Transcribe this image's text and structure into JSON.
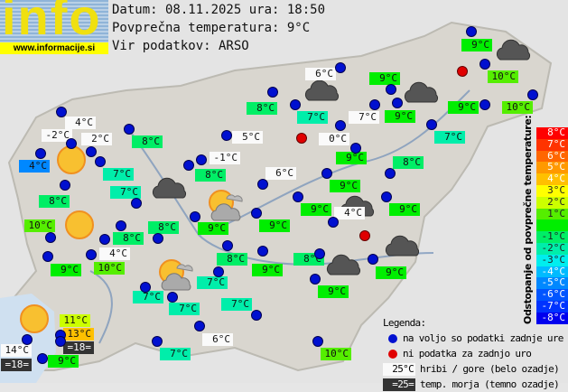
{
  "header": {
    "logo_text": "info",
    "logo_url": "www.informacije.si",
    "date_line": "Datum: 08.11.2025 ura: 18:50",
    "avg_line": "Povprečna temperatura: 9°C",
    "source_line": "Vir podatkov: ARSO"
  },
  "average_temperature": 9,
  "stations": [
    {
      "temp": "4°C",
      "kind": "mountain"
    },
    {
      "temp": "-2°C",
      "kind": "mountain"
    },
    {
      "temp": "2°C",
      "kind": "mountain"
    },
    {
      "temp": "4°C",
      "kind": "valley"
    },
    {
      "temp": "7°C",
      "kind": "valley"
    },
    {
      "temp": "7°C",
      "kind": "valley"
    },
    {
      "temp": "8°C",
      "kind": "valley"
    },
    {
      "temp": "10°C",
      "kind": "valley"
    },
    {
      "temp": "8°C",
      "kind": "valley"
    },
    {
      "temp": "8°C",
      "kind": "valley"
    },
    {
      "temp": "9°C",
      "kind": "valley"
    },
    {
      "temp": "4°C",
      "kind": "mountain"
    },
    {
      "temp": "10°C",
      "kind": "valley"
    },
    {
      "temp": "8°C",
      "kind": "valley"
    },
    {
      "temp": "8°C",
      "kind": "valley"
    },
    {
      "temp": "5°C",
      "kind": "mountain"
    },
    {
      "temp": "-1°C",
      "kind": "mountain"
    },
    {
      "temp": "8°C",
      "kind": "valley"
    },
    {
      "temp": "6°C",
      "kind": "mountain"
    },
    {
      "temp": "9°C",
      "kind": "valley"
    },
    {
      "temp": "9°C",
      "kind": "valley"
    },
    {
      "temp": "8°C",
      "kind": "valley"
    },
    {
      "temp": "9°C",
      "kind": "valley"
    },
    {
      "temp": "9°C",
      "kind": "valley"
    },
    {
      "temp": "10°C",
      "kind": "valley"
    },
    {
      "temp": "10°C",
      "kind": "valley"
    },
    {
      "temp": "9°C",
      "kind": "valley"
    },
    {
      "temp": "6°C",
      "kind": "mountain"
    },
    {
      "temp": "7°C",
      "kind": "valley"
    },
    {
      "temp": "9°C",
      "kind": "valley"
    },
    {
      "temp": "7°C",
      "kind": "mountain"
    },
    {
      "temp": "9°C",
      "kind": "valley"
    },
    {
      "temp": "7°C",
      "kind": "valley"
    },
    {
      "temp": "0°C",
      "kind": "mountain"
    },
    {
      "temp": "9°C",
      "kind": "valley"
    },
    {
      "temp": "8°C",
      "kind": "valley"
    },
    {
      "temp": "9°C",
      "kind": "valley"
    },
    {
      "temp": "9°C",
      "kind": "valley"
    },
    {
      "temp": "4°C",
      "kind": "mountain"
    },
    {
      "temp": "9°C",
      "kind": "valley"
    },
    {
      "temp": "9°C",
      "kind": "valley"
    },
    {
      "temp": "8°C",
      "kind": "valley"
    },
    {
      "temp": "9°C",
      "kind": "valley"
    },
    {
      "temp": "7°C",
      "kind": "valley"
    },
    {
      "temp": "7°C",
      "kind": "valley"
    },
    {
      "temp": "7°C",
      "kind": "valley"
    },
    {
      "temp": "7°C",
      "kind": "valley"
    },
    {
      "temp": "11°C",
      "kind": "valley"
    },
    {
      "temp": "13°C",
      "kind": "valley"
    },
    {
      "temp": "=18=",
      "kind": "sea"
    },
    {
      "temp": "14°C",
      "kind": "mountain"
    },
    {
      "temp": "=18=",
      "kind": "sea"
    },
    {
      "temp": "9°C",
      "kind": "valley"
    },
    {
      "temp": "7°C",
      "kind": "valley"
    },
    {
      "temp": "6°C",
      "kind": "mountain"
    },
    {
      "temp": "10°C",
      "kind": "valley"
    }
  ],
  "weather_icons": [
    "sun",
    "sun",
    "cloud",
    "sun-cloud",
    "cloud",
    "cloud",
    "cloud",
    "cloud",
    "cloud",
    "cloud",
    "sun-cloud",
    "sun"
  ],
  "scale": {
    "title": "Odstopanje od povprečne temperature:",
    "steps": [
      {
        "label": "8°C",
        "color": "#ff0000"
      },
      {
        "label": "7°C",
        "color": "#ff3300"
      },
      {
        "label": "6°C",
        "color": "#ff6600"
      },
      {
        "label": "5°C",
        "color": "#ff9900"
      },
      {
        "label": "4°C",
        "color": "#ffc000"
      },
      {
        "label": "3°C",
        "color": "#ffff00"
      },
      {
        "label": "2°C",
        "color": "#ccff00"
      },
      {
        "label": "1°C",
        "color": "#55ee00"
      },
      {
        "label": "",
        "color": "#00ee00"
      },
      {
        "label": "-1°C",
        "color": "#00ee66"
      },
      {
        "label": "-2°C",
        "color": "#00eeaa"
      },
      {
        "label": "-3°C",
        "color": "#00eeee"
      },
      {
        "label": "-4°C",
        "color": "#00bbff"
      },
      {
        "label": "-5°C",
        "color": "#0088ff"
      },
      {
        "label": "-6°C",
        "color": "#0055ff"
      },
      {
        "label": "-7°C",
        "color": "#0033ff"
      },
      {
        "label": "-8°C",
        "color": "#0000ee"
      }
    ]
  },
  "legend": {
    "title": "Legenda:",
    "available": "na voljo so podatki zadnje ure",
    "nodata": "ni podatka za zadnjo uro",
    "mountain_sample": "25°C",
    "mountain_text": "hribi / gore (belo ozadje)",
    "sea_sample": "=25=",
    "sea_text": "temp. morja (temno ozadje)"
  },
  "colors": {
    "available_dot": "#0010d0",
    "nodata_dot": "#e00000"
  }
}
